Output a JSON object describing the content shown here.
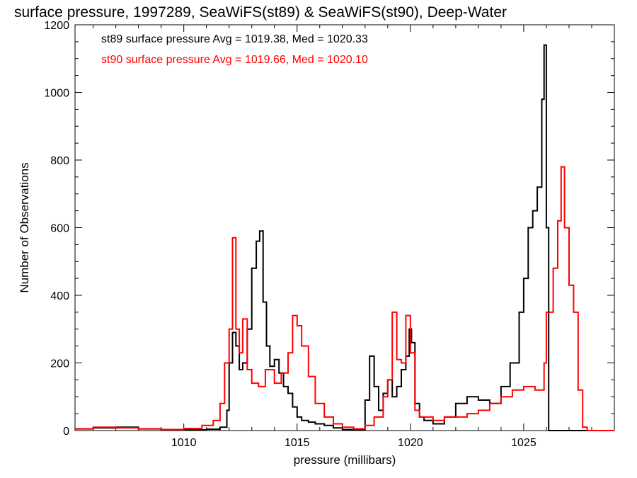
{
  "chart_data": {
    "type": "line",
    "title": "surface pressure, 1997289, SeaWiFS(st89) & SeaWiFS(st90), Deep-Water",
    "xlabel": "pressure (millibars)",
    "ylabel": "Number of Observations",
    "xlim": [
      1005.2,
      1029
    ],
    "ylim": [
      0,
      1200
    ],
    "xticks": [
      1010,
      1015,
      1020,
      1025
    ],
    "yticks": [
      0,
      200,
      400,
      600,
      800,
      1000,
      1200
    ],
    "grid": false,
    "legend_position": "top-left",
    "annotations": [
      {
        "text": "st89 surface pressure Avg = 1019.38, Med = 1020.33",
        "color": "#000000"
      },
      {
        "text": "st90 surface pressure Avg = 1019.66, Med = 1020.10",
        "color": "#ff0000"
      }
    ],
    "series": [
      {
        "color": "#000000",
        "x": [
          1005.2,
          1006.0,
          1007.0,
          1008.0,
          1009.0,
          1010.0,
          1011.0,
          1011.6,
          1011.9,
          1012.0,
          1012.15,
          1012.3,
          1012.45,
          1012.6,
          1012.8,
          1013.0,
          1013.2,
          1013.35,
          1013.5,
          1013.65,
          1013.8,
          1014.0,
          1014.2,
          1014.4,
          1014.6,
          1014.8,
          1015.0,
          1015.2,
          1015.5,
          1015.8,
          1016.2,
          1016.6,
          1017.0,
          1017.5,
          1018.0,
          1018.2,
          1018.4,
          1018.6,
          1018.8,
          1019.0,
          1019.2,
          1019.4,
          1019.6,
          1019.8,
          1019.95,
          1020.05,
          1020.2,
          1020.4,
          1020.6,
          1021.0,
          1021.5,
          1022.0,
          1022.5,
          1023.0,
          1023.5,
          1024.0,
          1024.4,
          1024.8,
          1025.0,
          1025.2,
          1025.4,
          1025.6,
          1025.8,
          1025.9,
          1026.0,
          1026.1,
          1026.3,
          1027.0,
          1028.0,
          1029.0
        ],
        "y": [
          5,
          8,
          10,
          5,
          3,
          2,
          4,
          10,
          60,
          200,
          290,
          250,
          180,
          200,
          300,
          480,
          560,
          590,
          380,
          250,
          190,
          210,
          170,
          130,
          110,
          70,
          40,
          30,
          25,
          20,
          15,
          8,
          3,
          2,
          90,
          220,
          130,
          60,
          110,
          150,
          100,
          130,
          180,
          220,
          300,
          260,
          80,
          40,
          30,
          20,
          40,
          80,
          100,
          90,
          80,
          130,
          200,
          350,
          450,
          600,
          650,
          720,
          980,
          1140,
          600,
          0,
          0,
          0,
          0,
          0
        ]
      },
      {
        "color": "#ff0000",
        "x": [
          1005.2,
          1006.0,
          1007.0,
          1008.0,
          1009.0,
          1010.0,
          1010.8,
          1011.3,
          1011.6,
          1011.8,
          1012.0,
          1012.15,
          1012.3,
          1012.45,
          1012.6,
          1012.8,
          1013.0,
          1013.3,
          1013.6,
          1014.0,
          1014.3,
          1014.6,
          1014.8,
          1015.0,
          1015.2,
          1015.5,
          1015.8,
          1016.2,
          1016.6,
          1017.0,
          1017.5,
          1018.0,
          1018.4,
          1018.8,
          1019.0,
          1019.2,
          1019.4,
          1019.6,
          1019.8,
          1020.0,
          1020.2,
          1020.4,
          1021.0,
          1021.5,
          1022.0,
          1022.5,
          1023.0,
          1023.5,
          1024.0,
          1024.5,
          1025.0,
          1025.5,
          1025.9,
          1026.0,
          1026.3,
          1026.5,
          1026.65,
          1026.8,
          1027.0,
          1027.2,
          1027.4,
          1027.6,
          1027.8,
          1028.0,
          1029.0
        ],
        "y": [
          5,
          10,
          8,
          5,
          3,
          6,
          15,
          30,
          80,
          200,
          300,
          570,
          300,
          230,
          330,
          180,
          140,
          130,
          180,
          140,
          170,
          230,
          340,
          310,
          250,
          160,
          80,
          40,
          20,
          10,
          5,
          15,
          40,
          100,
          150,
          350,
          210,
          200,
          340,
          230,
          60,
          40,
          30,
          40,
          40,
          50,
          60,
          80,
          100,
          120,
          130,
          120,
          200,
          350,
          480,
          620,
          780,
          600,
          430,
          350,
          120,
          10,
          0,
          0,
          0
        ]
      }
    ]
  }
}
